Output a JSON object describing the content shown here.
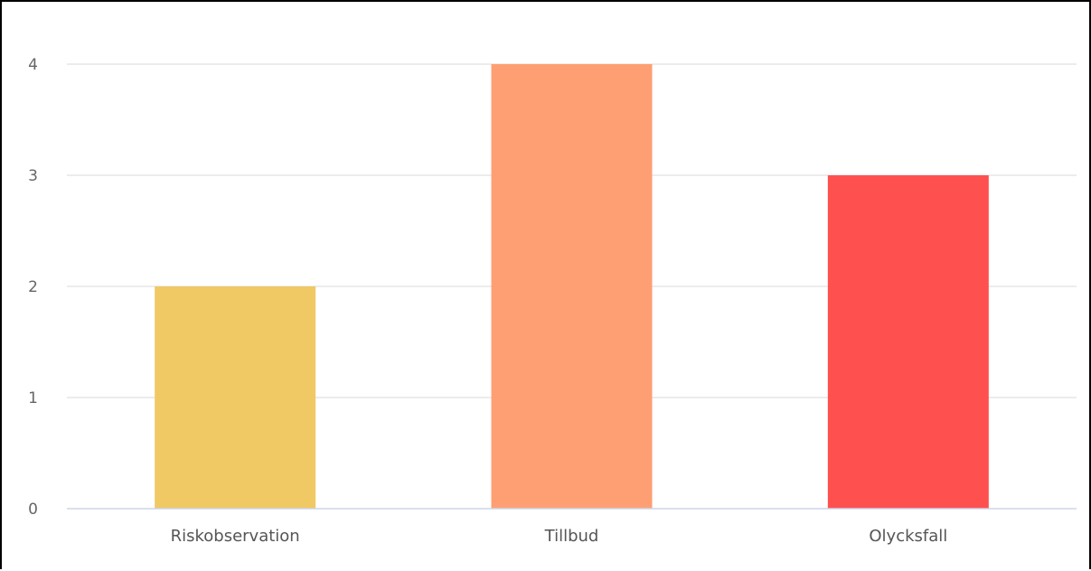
{
  "chart_data": {
    "type": "bar",
    "title": "",
    "xlabel": "",
    "ylabel": "",
    "categories": [
      "Riskobservation",
      "Tillbud",
      "Olycksfall"
    ],
    "values": [
      2,
      4,
      3
    ],
    "colors": [
      "#f0c965",
      "#fe9f73",
      "#ff5050"
    ],
    "ylim": [
      0,
      4
    ],
    "yticks": [
      0,
      1,
      2,
      3,
      4
    ],
    "grid": true,
    "legend": "none"
  },
  "colors": {
    "grid": "#e6e6e6",
    "axis": "#ccd6eb",
    "tick_text": "#666666",
    "category_text": "#555555"
  }
}
